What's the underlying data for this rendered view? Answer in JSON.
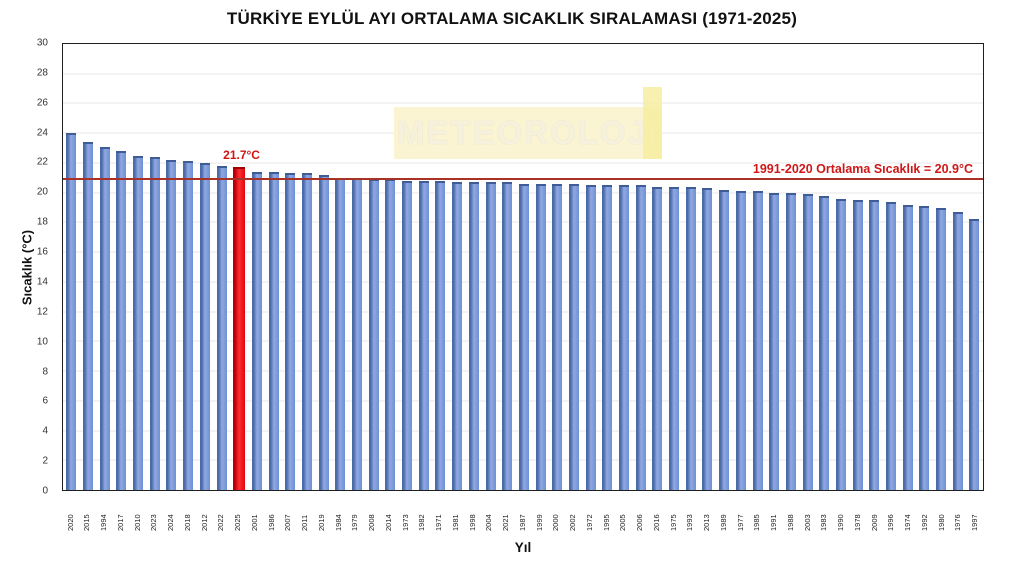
{
  "title": "TÜRKİYE EYLÜL AYI ORTALAMA SICAKLIK SIRALAMASI (1971-2025)",
  "watermark": "METEOROLOJİ",
  "axes": {
    "ylabel": "Sıcaklık (°C)",
    "xlabel": "Yıl"
  },
  "reference_line": {
    "value": 20.9,
    "label": "1991-2020 Ortalama Sıcaklık = 20.9°C",
    "color": "#a93226"
  },
  "highlight": {
    "year": "2025",
    "value": 21.7,
    "label": "21.7°C",
    "color": "#e30613"
  },
  "chart_data": {
    "type": "bar",
    "title": "TÜRKİYE EYLÜL AYI ORTALAMA SICAKLIK SIRALAMASI (1971-2025)",
    "xlabel": "Yıl",
    "ylabel": "Sıcaklık (°C)",
    "ylim": [
      0,
      30
    ],
    "ytick_step": 2,
    "grid": true,
    "bar_color": "#6e90d4",
    "bar_edge_color": "#4a6aa8",
    "highlight_index": 10,
    "highlight_color": "#e30613",
    "categories": [
      "2020",
      "2015",
      "1994",
      "2017",
      "2010",
      "2023",
      "2024",
      "2018",
      "2012",
      "2022",
      "2025",
      "2001",
      "1986",
      "2007",
      "2011",
      "2019",
      "1984",
      "1979",
      "2008",
      "2014",
      "1973",
      "1982",
      "1971",
      "1981",
      "1998",
      "2004",
      "2021",
      "1987",
      "1999",
      "2000",
      "2002",
      "1972",
      "1995",
      "2005",
      "2006",
      "2016",
      "1975",
      "1993",
      "2013",
      "1989",
      "1977",
      "1985",
      "1991",
      "1988",
      "2003",
      "1983",
      "1990",
      "1978",
      "2009",
      "1996",
      "1974",
      "1992",
      "1980",
      "1976",
      "1997"
    ],
    "values": [
      24.0,
      23.4,
      23.1,
      22.8,
      22.5,
      22.4,
      22.2,
      22.1,
      22.0,
      21.8,
      21.7,
      21.4,
      21.4,
      21.3,
      21.3,
      21.2,
      21.0,
      21.0,
      20.9,
      20.9,
      20.8,
      20.8,
      20.8,
      20.7,
      20.7,
      20.7,
      20.7,
      20.6,
      20.6,
      20.6,
      20.6,
      20.5,
      20.5,
      20.5,
      20.5,
      20.4,
      20.4,
      20.4,
      20.3,
      20.2,
      20.1,
      20.1,
      20.0,
      20.0,
      19.9,
      19.8,
      19.6,
      19.5,
      19.5,
      19.4,
      19.2,
      19.1,
      19.0,
      18.7,
      18.2
    ],
    "annotations": [
      {
        "text": "21.7°C",
        "target_year": "2025"
      },
      {
        "text": "1991-2020 Ortalama Sıcaklık = 20.9°C",
        "y": 20.9
      }
    ],
    "legend": null
  }
}
